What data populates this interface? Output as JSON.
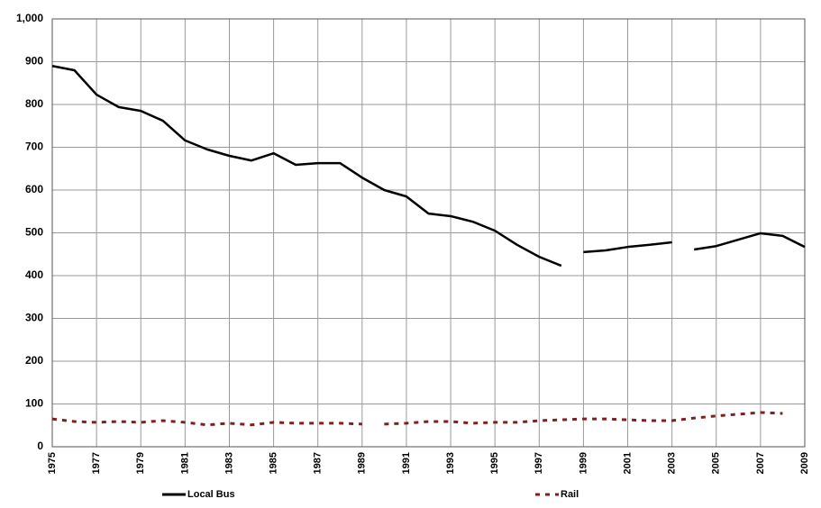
{
  "chart_data": {
    "type": "line",
    "xlim": [
      1975,
      2009
    ],
    "xticks": [
      1975,
      1977,
      1979,
      1981,
      1983,
      1985,
      1987,
      1989,
      1991,
      1993,
      1995,
      1997,
      1999,
      2001,
      2003,
      2005,
      2007,
      2009
    ],
    "ylim": [
      0,
      1000
    ],
    "yticks": [
      0,
      100,
      200,
      300,
      400,
      500,
      600,
      700,
      800,
      900,
      {
        "value": 1000,
        "label": "1,000"
      }
    ],
    "grid": true,
    "legend": "bottom",
    "series": [
      {
        "name": "Local Bus",
        "color": "#000000",
        "style": "solid",
        "x": [
          1975,
          1976,
          1977,
          1978,
          1979,
          1980,
          1981,
          1982,
          1983,
          1984,
          1985,
          1986,
          1987,
          1988,
          1989,
          1990,
          1991,
          1992,
          1993,
          1994,
          1995,
          1996,
          1997,
          1998,
          null,
          1999,
          2000,
          2001,
          2002,
          2003,
          null,
          2004,
          2005,
          2006,
          2007,
          2008,
          2009
        ],
        "values": [
          890,
          880,
          823,
          794,
          785,
          762,
          716,
          695,
          680,
          669,
          686,
          659,
          663,
          663,
          629,
          600,
          585,
          545,
          539,
          526,
          505,
          472,
          444,
          423,
          null,
          455,
          459,
          467,
          472,
          478,
          null,
          461,
          469,
          484,
          499,
          493,
          467
        ]
      },
      {
        "name": "Rail",
        "color": "#7f1f1f",
        "style": "dashed",
        "x": [
          1975,
          1976,
          1977,
          1978,
          1979,
          1980,
          1981,
          1982,
          1983,
          1984,
          1985,
          1986,
          1987,
          1988,
          1989,
          null,
          1990,
          1991,
          1992,
          1993,
          1994,
          1995,
          1996,
          1997,
          1998,
          1999,
          2000,
          2001,
          2002,
          2003,
          2004,
          2005,
          2006,
          2007,
          2008
        ],
        "values": [
          65,
          59,
          57,
          59,
          57,
          61,
          57,
          51,
          55,
          51,
          57,
          55,
          55,
          55,
          53,
          null,
          53,
          55,
          59,
          59,
          55,
          57,
          57,
          61,
          63,
          65,
          65,
          63,
          61,
          61,
          67,
          72,
          76,
          80,
          78
        ]
      }
    ]
  }
}
